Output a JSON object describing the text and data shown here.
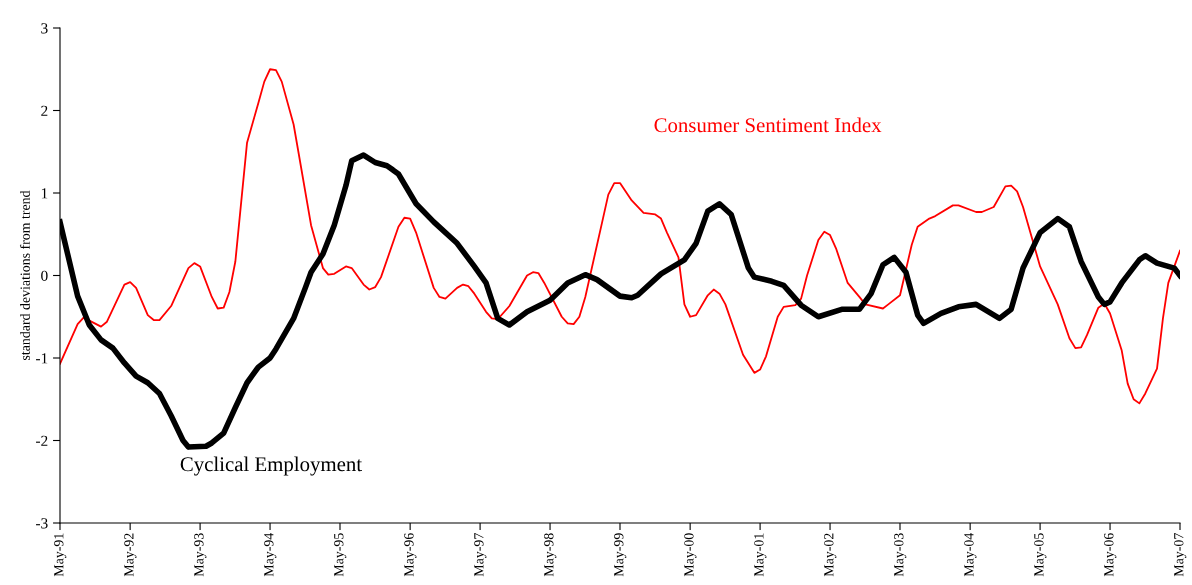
{
  "chart_data": {
    "type": "line",
    "ylabel": "standard deviations from trend",
    "xlim": [
      "1991-05",
      "2007-05"
    ],
    "ylim": [
      -3,
      3
    ],
    "yticks": [
      -3,
      -2,
      -1,
      0,
      1,
      2,
      3
    ],
    "xticks": [
      {
        "value": "1991-05",
        "label": "May-91"
      },
      {
        "value": "1992-05",
        "label": "May-92"
      },
      {
        "value": "1993-05",
        "label": "May-93"
      },
      {
        "value": "1994-05",
        "label": "May-94"
      },
      {
        "value": "1995-05",
        "label": "May-95"
      },
      {
        "value": "1996-05",
        "label": "May-96"
      },
      {
        "value": "1997-05",
        "label": "May-97"
      },
      {
        "value": "1998-05",
        "label": "May-98"
      },
      {
        "value": "1999-05",
        "label": "May-99"
      },
      {
        "value": "2000-05",
        "label": "May-00"
      },
      {
        "value": "2001-05",
        "label": "May-01"
      },
      {
        "value": "2002-05",
        "label": "May-02"
      },
      {
        "value": "2003-05",
        "label": "May-03"
      },
      {
        "value": "2004-05",
        "label": "May-04"
      },
      {
        "value": "2005-05",
        "label": "May-05"
      },
      {
        "value": "2006-05",
        "label": "May-06"
      },
      {
        "value": "2007-05",
        "label": "May-07"
      }
    ],
    "grid": false,
    "legend": false,
    "marker": "none",
    "line_style": "solid",
    "series": [
      {
        "name": "Consumer Sentiment Index",
        "color": "#ff0000",
        "x": [
          "1991-05",
          "1991-08",
          "1991-09",
          "1991-12",
          "1992-01",
          "1992-04",
          "1992-05",
          "1992-06",
          "1992-08",
          "1992-09",
          "1992-10",
          "1992-12",
          "1993-03",
          "1993-04",
          "1993-05",
          "1993-07",
          "1993-08",
          "1993-09",
          "1993-10",
          "1993-11",
          "1994-01",
          "1994-03",
          "1994-04",
          "1994-05",
          "1994-06",
          "1994-07",
          "1994-09",
          "1994-10",
          "1994-12",
          "1995-02",
          "1995-03",
          "1995-04",
          "1995-06",
          "1995-07",
          "1995-09",
          "1995-10",
          "1995-11",
          "1995-12",
          "1996-03",
          "1996-04",
          "1996-05",
          "1996-06",
          "1996-09",
          "1996-10",
          "1996-11",
          "1997-01",
          "1997-02",
          "1997-03",
          "1997-04",
          "1997-06",
          "1997-07",
          "1997-08",
          "1997-10",
          "1998-01",
          "1998-02",
          "1998-03",
          "1998-04",
          "1998-07",
          "1998-08",
          "1998-09",
          "1998-10",
          "1998-11",
          "1999-02",
          "1999-03",
          "1999-04",
          "1999-05",
          "1999-07",
          "1999-09",
          "1999-11",
          "1999-12",
          "2000-01",
          "2000-03",
          "2000-04",
          "2000-05",
          "2000-06",
          "2000-08",
          "2000-09",
          "2000-10",
          "2000-11",
          "2001-02",
          "2001-04",
          "2001-05",
          "2001-06",
          "2001-08",
          "2001-09",
          "2001-11",
          "2001-12",
          "2002-01",
          "2002-03",
          "2002-04",
          "2002-05",
          "2002-06",
          "2002-08",
          "2002-10",
          "2002-11",
          "2003-02",
          "2003-03",
          "2003-05",
          "2003-07",
          "2003-08",
          "2003-10",
          "2003-11",
          "2004-02",
          "2004-03",
          "2004-06",
          "2004-07",
          "2004-09",
          "2004-11",
          "2004-12",
          "2005-01",
          "2005-02",
          "2005-05",
          "2005-08",
          "2005-10",
          "2005-11",
          "2005-12",
          "2006-01",
          "2006-03",
          "2006-04",
          "2006-05",
          "2006-07",
          "2006-08",
          "2006-09",
          "2006-10",
          "2006-11",
          "2007-01",
          "2007-02",
          "2007-03",
          "2007-05"
        ],
        "values": [
          -1.07,
          -0.59,
          -0.51,
          -0.62,
          -0.56,
          -0.11,
          -0.08,
          -0.15,
          -0.48,
          -0.54,
          -0.54,
          -0.37,
          0.09,
          0.15,
          0.11,
          -0.26,
          -0.4,
          -0.39,
          -0.2,
          0.17,
          1.61,
          2.09,
          2.35,
          2.5,
          2.49,
          2.35,
          1.83,
          1.43,
          0.61,
          0.09,
          0.01,
          0.02,
          0.11,
          0.09,
          -0.11,
          -0.17,
          -0.14,
          -0.02,
          0.59,
          0.7,
          0.69,
          0.52,
          -0.15,
          -0.26,
          -0.28,
          -0.15,
          -0.11,
          -0.13,
          -0.22,
          -0.44,
          -0.52,
          -0.53,
          -0.37,
          0.0,
          0.04,
          0.03,
          -0.09,
          -0.5,
          -0.58,
          -0.59,
          -0.5,
          -0.26,
          0.69,
          0.98,
          1.12,
          1.12,
          0.91,
          0.76,
          0.74,
          0.69,
          0.52,
          0.22,
          -0.35,
          -0.5,
          -0.48,
          -0.24,
          -0.17,
          -0.22,
          -0.35,
          -0.96,
          -1.18,
          -1.14,
          -0.98,
          -0.5,
          -0.38,
          -0.36,
          -0.28,
          0.0,
          0.43,
          0.53,
          0.49,
          0.33,
          -0.09,
          -0.26,
          -0.35,
          -0.4,
          -0.35,
          -0.24,
          0.37,
          0.59,
          0.69,
          0.72,
          0.85,
          0.85,
          0.77,
          0.77,
          0.83,
          1.08,
          1.09,
          1.02,
          0.83,
          0.11,
          -0.35,
          -0.76,
          -0.88,
          -0.87,
          -0.72,
          -0.39,
          -0.34,
          -0.46,
          -0.91,
          -1.31,
          -1.5,
          -1.55,
          -1.43,
          -1.13,
          -0.52,
          -0.09,
          0.3
        ]
      },
      {
        "name": "Cyclical Employment",
        "color": "#000000",
        "x": [
          "1991-05",
          "1991-08",
          "1991-10",
          "1991-12",
          "1992-02",
          "1992-04",
          "1992-06",
          "1992-08",
          "1992-10",
          "1992-12",
          "1993-02",
          "1993-03",
          "1993-06",
          "1993-07",
          "1993-09",
          "1993-11",
          "1994-01",
          "1994-03",
          "1994-05",
          "1994-06",
          "1994-09",
          "1994-11",
          "1994-12",
          "1995-02",
          "1995-04",
          "1995-06",
          "1995-07",
          "1995-09",
          "1995-11",
          "1996-01",
          "1996-02",
          "1996-03",
          "1996-06",
          "1996-09",
          "1997-01",
          "1997-04",
          "1997-06",
          "1997-08",
          "1997-10",
          "1998-01",
          "1998-05",
          "1998-08",
          "1998-11",
          "1999-01",
          "1999-05",
          "1999-07",
          "1999-08",
          "1999-12",
          "2000-04",
          "2000-06",
          "2000-08",
          "2000-10",
          "2000-12",
          "2001-03",
          "2001-04",
          "2001-07",
          "2001-09",
          "2001-12",
          "2002-03",
          "2002-07",
          "2002-10",
          "2002-12",
          "2003-02",
          "2003-04",
          "2003-06",
          "2003-08",
          "2003-09",
          "2003-12",
          "2004-03",
          "2004-06",
          "2004-10",
          "2004-12",
          "2005-02",
          "2005-05",
          "2005-08",
          "2005-10",
          "2005-12",
          "2006-03",
          "2006-04",
          "2006-05",
          "2006-07",
          "2006-10",
          "2006-11",
          "2007-01",
          "2007-04",
          "2007-05"
        ],
        "values": [
          0.65,
          -0.25,
          -0.6,
          -0.78,
          -0.88,
          -1.06,
          -1.22,
          -1.3,
          -1.43,
          -1.7,
          -2.0,
          -2.08,
          -2.07,
          -2.03,
          -1.91,
          -1.6,
          -1.3,
          -1.11,
          -1.0,
          -0.89,
          -0.52,
          -0.15,
          0.04,
          0.26,
          0.61,
          1.09,
          1.39,
          1.46,
          1.37,
          1.33,
          1.28,
          1.23,
          0.87,
          0.65,
          0.39,
          0.11,
          -0.09,
          -0.52,
          -0.6,
          -0.44,
          -0.3,
          -0.09,
          0.01,
          -0.05,
          -0.25,
          -0.27,
          -0.24,
          0.02,
          0.19,
          0.39,
          0.78,
          0.87,
          0.74,
          0.09,
          -0.02,
          -0.07,
          -0.12,
          -0.36,
          -0.5,
          -0.41,
          -0.41,
          -0.22,
          0.13,
          0.22,
          0.04,
          -0.48,
          -0.58,
          -0.46,
          -0.38,
          -0.35,
          -0.52,
          -0.41,
          0.09,
          0.52,
          0.69,
          0.59,
          0.17,
          -0.26,
          -0.35,
          -0.32,
          -0.09,
          0.19,
          0.24,
          0.15,
          0.09,
          0.0
        ]
      }
    ]
  }
}
